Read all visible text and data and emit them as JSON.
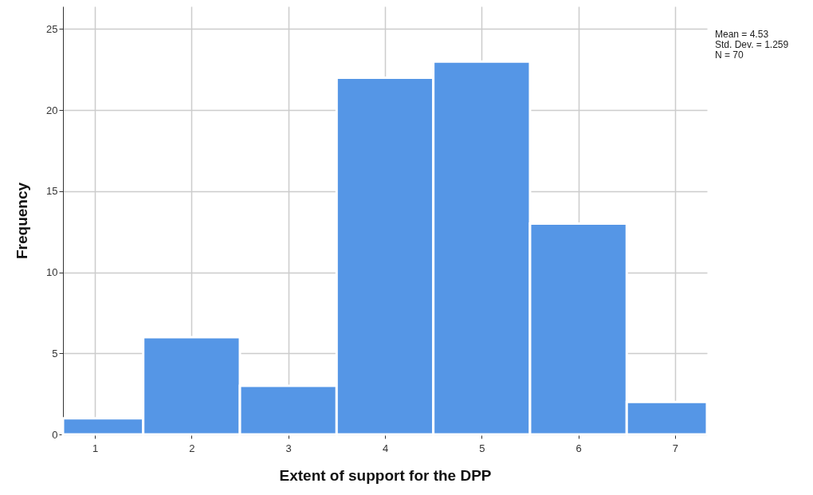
{
  "chart_data": {
    "type": "histogram",
    "xlabel": "Extent of support for the DPP",
    "ylabel": "Frequency",
    "bins": [
      0.67,
      1.5,
      2.5,
      3.5,
      4.5,
      5.5,
      6.5,
      7.33
    ],
    "values": [
      1,
      6,
      3,
      22,
      23,
      13,
      2
    ],
    "color": "#5596e6",
    "xlim": [
      0.67,
      7.33
    ],
    "xticks": [
      1,
      2,
      3,
      4,
      5,
      6,
      7
    ],
    "ylim": [
      0,
      26.4
    ],
    "yticks": [
      0,
      5,
      10,
      15,
      20,
      25
    ],
    "grid": true,
    "annotations": [
      "Mean = 4.53",
      "Std. Dev. = 1.259",
      "N = 70"
    ]
  }
}
